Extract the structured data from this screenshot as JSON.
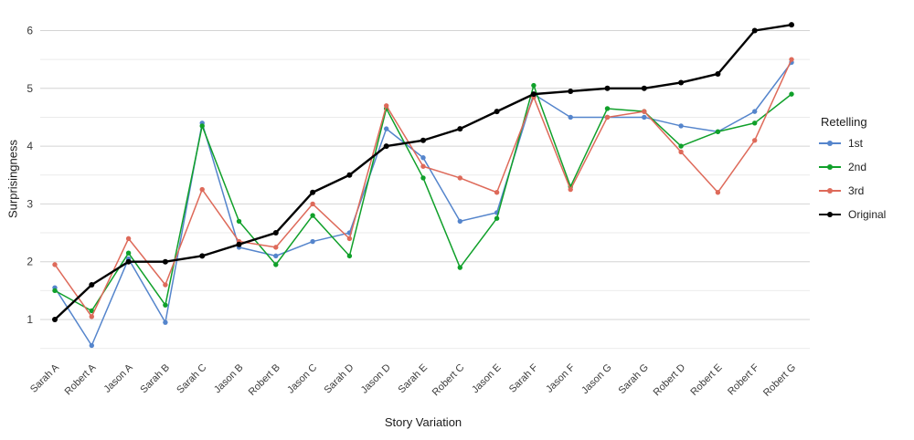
{
  "chart_data": {
    "type": "line",
    "xlabel": "Story Variation",
    "ylabel": "Surprisingness",
    "legend_title": "Retelling",
    "legend_position": "right",
    "grid": "horizontal major and minor, no vertical",
    "ylim": [
      0.4,
      6.4
    ],
    "yticks": [
      1,
      2,
      3,
      4,
      5,
      6
    ],
    "categories": [
      "Sarah A",
      "Robert A",
      "Jason A",
      "Sarah B",
      "Sarah C",
      "Jason B",
      "Robert B",
      "Jason C",
      "Sarah D",
      "Jason D",
      "Sarah E",
      "Robert C",
      "Jason E",
      "Sarah F",
      "Jason F",
      "Jason G",
      "Sarah G",
      "Robert D",
      "Robert E",
      "Robert F",
      "Robert G"
    ],
    "series": [
      {
        "name": "1st",
        "color": "#5585cc",
        "values": [
          1.55,
          0.55,
          2.05,
          0.95,
          4.4,
          2.25,
          2.1,
          2.35,
          2.5,
          4.3,
          3.8,
          2.7,
          2.85,
          4.9,
          4.5,
          4.5,
          4.5,
          4.35,
          4.25,
          4.6,
          5.45
        ]
      },
      {
        "name": "2nd",
        "color": "#10a02a",
        "values": [
          1.5,
          1.15,
          2.15,
          1.25,
          4.35,
          2.7,
          1.95,
          2.8,
          2.1,
          4.65,
          3.45,
          1.9,
          2.75,
          5.05,
          3.3,
          4.65,
          4.6,
          4.0,
          4.25,
          4.4,
          4.9
        ]
      },
      {
        "name": "3rd",
        "color": "#de6a5a",
        "values": [
          1.95,
          1.05,
          2.4,
          1.6,
          3.25,
          2.35,
          2.25,
          3.0,
          2.4,
          4.7,
          3.65,
          3.45,
          3.2,
          4.85,
          3.25,
          4.5,
          4.6,
          3.9,
          3.2,
          4.1,
          5.5
        ]
      },
      {
        "name": "Original",
        "color": "#000000",
        "values": [
          1.0,
          1.6,
          2.0,
          2.0,
          2.1,
          2.3,
          2.5,
          3.2,
          3.5,
          4.0,
          4.1,
          4.3,
          4.6,
          4.9,
          4.95,
          5.0,
          5.0,
          5.1,
          5.25,
          6.0,
          6.1
        ]
      }
    ]
  }
}
